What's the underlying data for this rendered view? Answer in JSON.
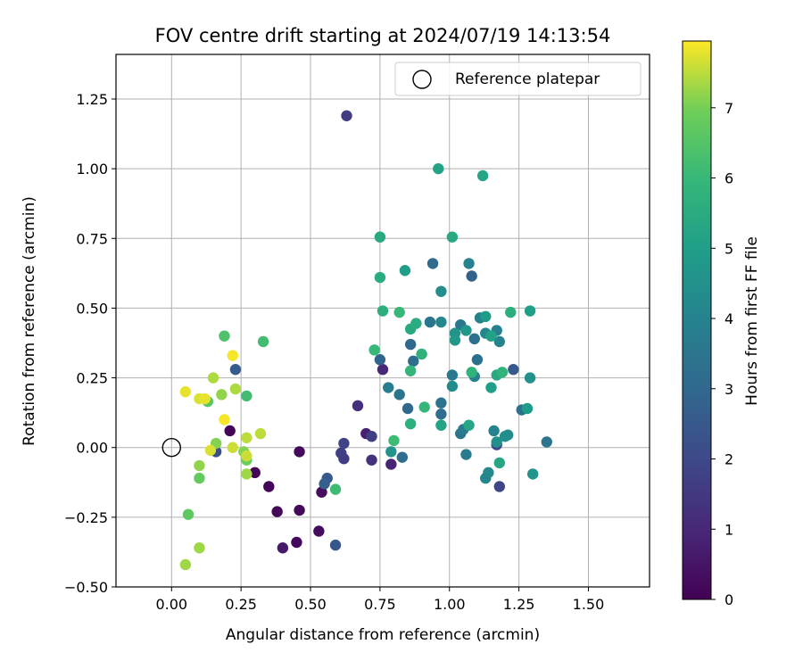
{
  "chart_data": {
    "type": "scatter",
    "title": "FOV centre drift starting at 2024/07/19 14:13:54",
    "xlabel": "Angular distance from reference (arcmin)",
    "ylabel": "Rotation from reference (arcmin)",
    "xlim": [
      -0.2,
      1.72
    ],
    "ylim": [
      -0.5,
      1.41
    ],
    "xticks": [
      0.0,
      0.25,
      0.5,
      0.75,
      1.0,
      1.25,
      1.5
    ],
    "xtick_labels": [
      "0.00",
      "0.25",
      "0.50",
      "0.75",
      "1.00",
      "1.25",
      "1.50"
    ],
    "yticks": [
      -0.5,
      -0.25,
      0.0,
      0.25,
      0.5,
      0.75,
      1.0,
      1.25
    ],
    "ytick_labels": [
      "−0.50",
      "−0.25",
      "0.00",
      "0.25",
      "0.50",
      "0.75",
      "1.00",
      "1.25"
    ],
    "grid": true,
    "legend": {
      "placement": "top-right",
      "entries": [
        "Reference platepar"
      ]
    },
    "colorbar": {
      "label": "Hours from first FF file",
      "colormap": "viridis",
      "range": [
        0,
        7.95
      ],
      "ticks": [
        0,
        1,
        2,
        3,
        4,
        5,
        6,
        7
      ],
      "tick_labels": [
        "0",
        "1",
        "2",
        "3",
        "4",
        "5",
        "6",
        "7"
      ]
    },
    "reference_point": {
      "name": "Reference platepar",
      "x": 0.0,
      "y": 0.0
    },
    "series": [
      {
        "points": [
          {
            "x": 0.21,
            "y": 0.06,
            "c": 0.05
          },
          {
            "x": 0.3,
            "y": -0.09,
            "c": 0.1
          },
          {
            "x": 0.35,
            "y": -0.14,
            "c": 0.1
          },
          {
            "x": 0.38,
            "y": -0.23,
            "c": 0.15
          },
          {
            "x": 0.45,
            "y": -0.34,
            "c": 0.2
          },
          {
            "x": 0.46,
            "y": -0.225,
            "c": 0.2
          },
          {
            "x": 0.46,
            "y": -0.015,
            "c": 0.2
          },
          {
            "x": 0.53,
            "y": -0.3,
            "c": 0.25
          },
          {
            "x": 0.54,
            "y": -0.16,
            "c": 0.3
          },
          {
            "x": 0.4,
            "y": -0.36,
            "c": 0.6
          },
          {
            "x": 0.7,
            "y": 0.05,
            "c": 0.8
          },
          {
            "x": 0.79,
            "y": -0.06,
            "c": 0.9
          },
          {
            "x": 0.76,
            "y": 0.28,
            "c": 1.0
          },
          {
            "x": 0.67,
            "y": 0.15,
            "c": 1.2
          },
          {
            "x": 0.72,
            "y": -0.045,
            "c": 1.3
          },
          {
            "x": 0.63,
            "y": 1.19,
            "c": 1.6
          },
          {
            "x": 0.62,
            "y": -0.04,
            "c": 1.6
          },
          {
            "x": 0.61,
            "y": -0.02,
            "c": 1.7
          },
          {
            "x": 0.72,
            "y": 0.04,
            "c": 1.7
          },
          {
            "x": 0.62,
            "y": 0.015,
            "c": 1.8
          },
          {
            "x": 1.18,
            "y": -0.14,
            "c": 1.9
          },
          {
            "x": 1.17,
            "y": 0.01,
            "c": 2.0
          },
          {
            "x": 0.16,
            "y": -0.015,
            "c": 2.2
          },
          {
            "x": 0.59,
            "y": -0.35,
            "c": 2.4
          },
          {
            "x": 0.56,
            "y": -0.11,
            "c": 2.5
          },
          {
            "x": 1.23,
            "y": 0.28,
            "c": 2.5
          },
          {
            "x": 0.23,
            "y": 0.28,
            "c": 2.6
          },
          {
            "x": 0.55,
            "y": -0.13,
            "c": 2.7
          },
          {
            "x": 1.08,
            "y": 0.615,
            "c": 2.8
          },
          {
            "x": 0.75,
            "y": 0.315,
            "c": 2.9
          },
          {
            "x": 0.86,
            "y": 0.37,
            "c": 3.0
          },
          {
            "x": 0.85,
            "y": 0.14,
            "c": 3.0
          },
          {
            "x": 0.94,
            "y": 0.66,
            "c": 3.1
          },
          {
            "x": 0.87,
            "y": 0.31,
            "c": 3.2
          },
          {
            "x": 0.97,
            "y": 0.12,
            "c": 3.2
          },
          {
            "x": 0.83,
            "y": -0.035,
            "c": 3.2
          },
          {
            "x": 1.09,
            "y": 0.39,
            "c": 3.3
          },
          {
            "x": 1.1,
            "y": 0.315,
            "c": 3.3
          },
          {
            "x": 1.26,
            "y": 0.135,
            "c": 3.3
          },
          {
            "x": 0.82,
            "y": 0.19,
            "c": 3.4
          },
          {
            "x": 0.97,
            "y": 0.16,
            "c": 3.4
          },
          {
            "x": 1.04,
            "y": 0.05,
            "c": 3.5
          },
          {
            "x": 1.35,
            "y": 0.02,
            "c": 3.5
          },
          {
            "x": 0.93,
            "y": 0.45,
            "c": 3.5
          },
          {
            "x": 1.01,
            "y": 0.26,
            "c": 3.6
          },
          {
            "x": 1.04,
            "y": 0.44,
            "c": 3.6
          },
          {
            "x": 1.05,
            "y": 0.065,
            "c": 3.7
          },
          {
            "x": 1.06,
            "y": -0.025,
            "c": 3.7
          },
          {
            "x": 0.78,
            "y": 0.215,
            "c": 3.8
          },
          {
            "x": 1.17,
            "y": 0.42,
            "c": 3.9
          },
          {
            "x": 1.11,
            "y": 0.465,
            "c": 3.9
          },
          {
            "x": 1.07,
            "y": 0.66,
            "c": 4.0
          },
          {
            "x": 1.09,
            "y": 0.255,
            "c": 4.0
          },
          {
            "x": 1.18,
            "y": 0.38,
            "c": 4.0
          },
          {
            "x": 1.16,
            "y": 0.06,
            "c": 4.0
          },
          {
            "x": 1.13,
            "y": -0.11,
            "c": 4.1
          },
          {
            "x": 1.13,
            "y": 0.41,
            "c": 4.1
          },
          {
            "x": 1.14,
            "y": -0.09,
            "c": 4.2
          },
          {
            "x": 0.97,
            "y": 0.45,
            "c": 4.2
          },
          {
            "x": 1.01,
            "y": 0.22,
            "c": 4.3
          },
          {
            "x": 1.21,
            "y": 0.045,
            "c": 4.3
          },
          {
            "x": 0.97,
            "y": 0.56,
            "c": 4.4
          },
          {
            "x": 1.2,
            "y": 0.04,
            "c": 4.4
          },
          {
            "x": 1.17,
            "y": 0.02,
            "c": 4.5
          },
          {
            "x": 1.29,
            "y": 0.25,
            "c": 4.5
          },
          {
            "x": 1.3,
            "y": -0.095,
            "c": 4.6
          },
          {
            "x": 0.79,
            "y": -0.015,
            "c": 4.6
          },
          {
            "x": 1.02,
            "y": 0.41,
            "c": 4.6
          },
          {
            "x": 1.06,
            "y": 0.42,
            "c": 4.8
          },
          {
            "x": 1.02,
            "y": 0.385,
            "c": 4.8
          },
          {
            "x": 1.13,
            "y": 0.47,
            "c": 4.9
          },
          {
            "x": 1.28,
            "y": 0.14,
            "c": 4.9
          },
          {
            "x": 1.15,
            "y": 0.215,
            "c": 5.0
          },
          {
            "x": 1.29,
            "y": 0.49,
            "c": 5.0
          },
          {
            "x": 0.84,
            "y": 0.635,
            "c": 5.0
          },
          {
            "x": 1.15,
            "y": 0.4,
            "c": 5.1
          },
          {
            "x": 0.97,
            "y": 0.08,
            "c": 5.2
          },
          {
            "x": 0.96,
            "y": 1.0,
            "c": 5.2
          },
          {
            "x": 1.07,
            "y": 0.08,
            "c": 5.3
          },
          {
            "x": 1.12,
            "y": 0.975,
            "c": 5.3
          },
          {
            "x": 1.18,
            "y": -0.055,
            "c": 5.3
          },
          {
            "x": 1.17,
            "y": 0.26,
            "c": 5.4
          },
          {
            "x": 0.86,
            "y": 0.425,
            "c": 5.4
          },
          {
            "x": 0.75,
            "y": 0.755,
            "c": 5.4
          },
          {
            "x": 1.01,
            "y": 0.755,
            "c": 5.4
          },
          {
            "x": 0.88,
            "y": 0.445,
            "c": 5.5
          },
          {
            "x": 0.75,
            "y": 0.61,
            "c": 5.5
          },
          {
            "x": 1.22,
            "y": 0.485,
            "c": 5.6
          },
          {
            "x": 0.86,
            "y": 0.085,
            "c": 5.6
          },
          {
            "x": 0.76,
            "y": 0.49,
            "c": 5.6
          },
          {
            "x": 0.9,
            "y": 0.335,
            "c": 5.7
          },
          {
            "x": 1.08,
            "y": 0.27,
            "c": 5.8
          },
          {
            "x": 1.19,
            "y": 0.27,
            "c": 5.8
          },
          {
            "x": 0.91,
            "y": 0.145,
            "c": 5.9
          },
          {
            "x": 0.86,
            "y": 0.275,
            "c": 5.9
          },
          {
            "x": 0.82,
            "y": 0.485,
            "c": 6.0
          },
          {
            "x": 0.73,
            "y": 0.35,
            "c": 6.0
          },
          {
            "x": 0.8,
            "y": 0.025,
            "c": 6.1
          },
          {
            "x": 0.59,
            "y": -0.15,
            "c": 6.1
          },
          {
            "x": 0.27,
            "y": 0.185,
            "c": 6.2
          },
          {
            "x": 0.33,
            "y": 0.38,
            "c": 6.2
          },
          {
            "x": 0.19,
            "y": 0.4,
            "c": 6.4
          },
          {
            "x": 0.13,
            "y": 0.165,
            "c": 6.6
          },
          {
            "x": 0.06,
            "y": -0.24,
            "c": 6.7
          },
          {
            "x": 0.1,
            "y": -0.11,
            "c": 6.8
          },
          {
            "x": 0.27,
            "y": -0.045,
            "c": 6.9
          },
          {
            "x": 0.26,
            "y": -0.015,
            "c": 7.1
          },
          {
            "x": 0.16,
            "y": 0.015,
            "c": 7.1
          },
          {
            "x": 0.18,
            "y": 0.19,
            "c": 7.2
          },
          {
            "x": 0.1,
            "y": -0.065,
            "c": 7.2
          },
          {
            "x": 0.27,
            "y": -0.095,
            "c": 7.3
          },
          {
            "x": 0.1,
            "y": -0.36,
            "c": 7.3
          },
          {
            "x": 0.05,
            "y": -0.42,
            "c": 7.3
          },
          {
            "x": 0.15,
            "y": 0.25,
            "c": 7.4
          },
          {
            "x": 0.23,
            "y": 0.21,
            "c": 7.4
          },
          {
            "x": 0.27,
            "y": 0.035,
            "c": 7.5
          },
          {
            "x": 0.32,
            "y": 0.05,
            "c": 7.5
          },
          {
            "x": 0.27,
            "y": -0.03,
            "c": 7.6
          },
          {
            "x": 0.22,
            "y": 0.0,
            "c": 7.6
          },
          {
            "x": 0.1,
            "y": 0.175,
            "c": 7.7
          },
          {
            "x": 0.14,
            "y": -0.01,
            "c": 7.7
          },
          {
            "x": 0.05,
            "y": 0.2,
            "c": 7.8
          },
          {
            "x": 0.12,
            "y": 0.175,
            "c": 7.8
          },
          {
            "x": 0.19,
            "y": 0.1,
            "c": 7.9
          },
          {
            "x": 0.22,
            "y": 0.33,
            "c": 7.9
          }
        ]
      }
    ]
  }
}
